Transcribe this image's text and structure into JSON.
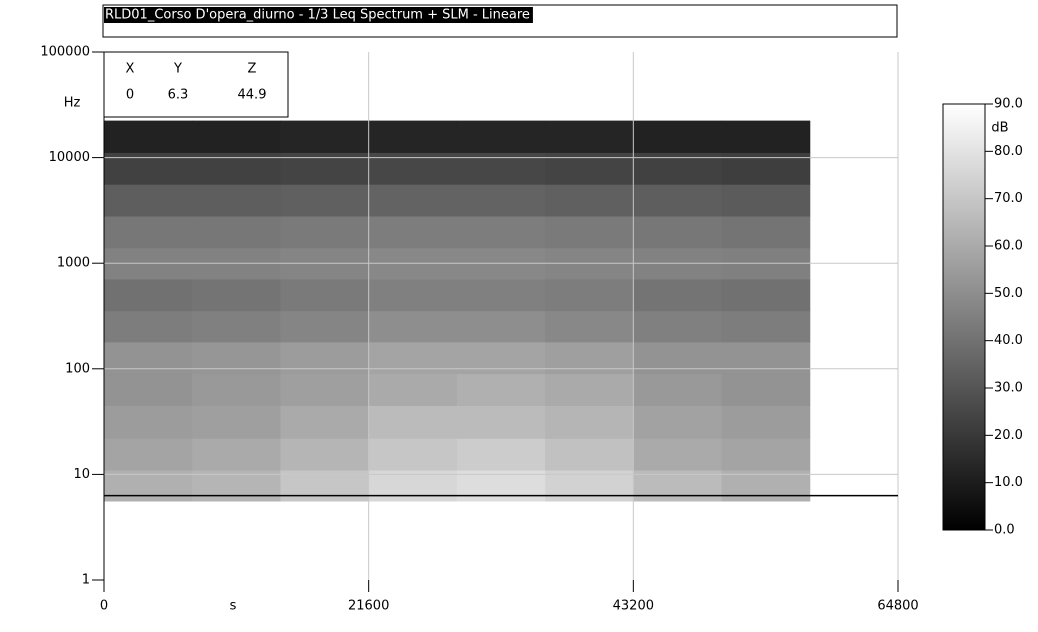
{
  "chart_data": {
    "type": "heatmap",
    "title": "RLD01_Corso D'opera_diurno - 1/3 Leq Spectrum + SLM - Lineare",
    "x_label": "s",
    "y_label": "Hz",
    "z_label": "dB",
    "xlim": [
      0,
      64800
    ],
    "xticks": [
      0,
      21600,
      43200,
      64800
    ],
    "ylim": [
      1,
      100000
    ],
    "yticks": [
      1,
      10,
      100,
      1000,
      10000,
      100000
    ],
    "y_scale": "log",
    "grid": true,
    "x_bins": [
      0,
      7200,
      14400,
      21600,
      28800,
      36000,
      43200,
      50400,
      57600
    ],
    "y_bins": [
      5.6,
      11,
      22,
      45,
      90,
      180,
      355,
      710,
      1400,
      2800,
      5600,
      11200,
      22400
    ],
    "z": [
      [
        62,
        64,
        70,
        76,
        78,
        74,
        66,
        62
      ],
      [
        58,
        60,
        64,
        70,
        72,
        68,
        60,
        58
      ],
      [
        55,
        56,
        60,
        66,
        66,
        64,
        57,
        55
      ],
      [
        52,
        54,
        56,
        60,
        62,
        60,
        54,
        52
      ],
      [
        52,
        53,
        55,
        58,
        58,
        56,
        52,
        52
      ],
      [
        44,
        45,
        47,
        50,
        50,
        48,
        45,
        44
      ],
      [
        40,
        41,
        43,
        45,
        45,
        44,
        41,
        40
      ],
      [
        46,
        46,
        47,
        48,
        48,
        47,
        46,
        45
      ],
      [
        42,
        42,
        43,
        44,
        44,
        43,
        42,
        41
      ],
      [
        33,
        33,
        34,
        35,
        35,
        34,
        33,
        32
      ],
      [
        23,
        23,
        24,
        25,
        25,
        24,
        23,
        22
      ],
      [
        12,
        12,
        13,
        13,
        13,
        13,
        12,
        12
      ]
    ],
    "zlim": [
      0,
      90
    ],
    "zticks": [
      {
        "value": 0,
        "label": "0.0"
      },
      {
        "value": 10,
        "label": "10.0"
      },
      {
        "value": 20,
        "label": "20.0"
      },
      {
        "value": 30,
        "label": "30.0"
      },
      {
        "value": 40,
        "label": "40.0"
      },
      {
        "value": 50,
        "label": "50.0"
      },
      {
        "value": 60,
        "label": "60.0"
      },
      {
        "value": 70,
        "label": "70.0"
      },
      {
        "value": 80,
        "label": "80.0"
      },
      {
        "value": 90,
        "label": "90.0"
      }
    ],
    "cursor": {
      "headers": [
        "X",
        "Y",
        "Z"
      ],
      "values": [
        0,
        6.3,
        44.9
      ]
    }
  }
}
